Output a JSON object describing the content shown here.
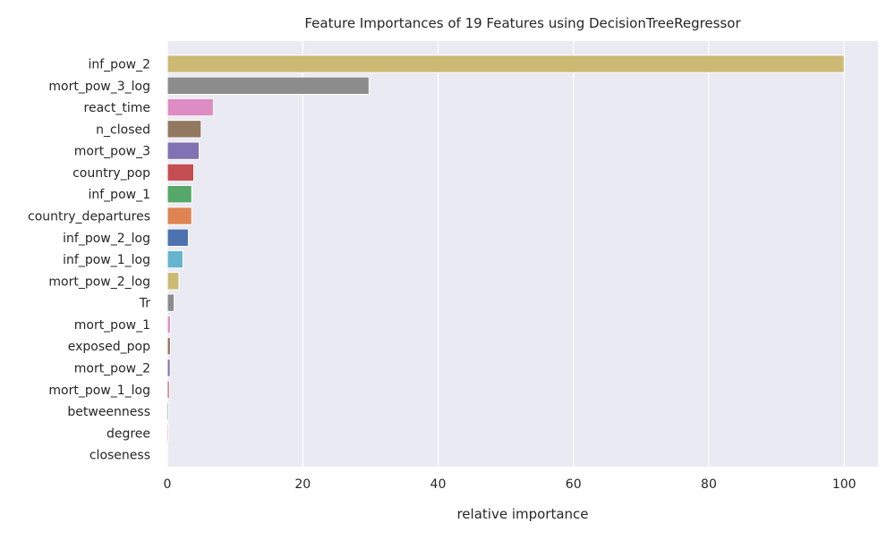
{
  "chart_data": {
    "type": "bar",
    "orientation": "horizontal",
    "title": "Feature Importances of 19 Features using DecisionTreeRegressor",
    "xlabel": "relative importance",
    "ylabel": "",
    "xlim": [
      0,
      105
    ],
    "xticks": [
      0,
      20,
      40,
      60,
      80,
      100
    ],
    "grid": true,
    "categories": [
      "inf_pow_2",
      "mort_pow_3_log",
      "react_time",
      "n_closed",
      "mort_pow_3",
      "country_pop",
      "inf_pow_1",
      "country_departures",
      "inf_pow_2_log",
      "inf_pow_1_log",
      "mort_pow_2_log",
      "Tr",
      "mort_pow_1",
      "exposed_pop",
      "mort_pow_2",
      "mort_pow_1_log",
      "betweenness",
      "degree",
      "closeness"
    ],
    "values": [
      100,
      29.8,
      6.8,
      5.0,
      4.7,
      3.9,
      3.6,
      3.6,
      3.1,
      2.3,
      1.7,
      1.0,
      0.45,
      0.45,
      0.42,
      0.28,
      0.2,
      0.18,
      0.0
    ],
    "colors": [
      "#ccb974",
      "#8c8c8c",
      "#dd8cc4",
      "#937860",
      "#8172b3",
      "#c44e52",
      "#55a868",
      "#dd8452",
      "#4c72b0",
      "#64b5cd",
      "#ccb974",
      "#8c8c8c",
      "#dd8cc4",
      "#937860",
      "#8172b3",
      "#c44e52",
      "#55a868",
      "#dd8452",
      "#4c72b0"
    ]
  }
}
